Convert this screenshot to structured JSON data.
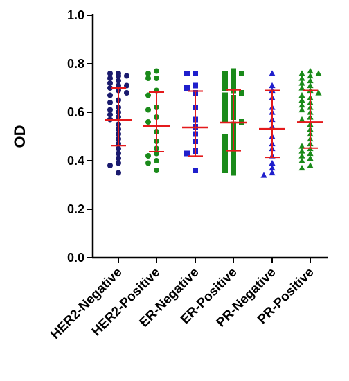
{
  "chart_data": {
    "type": "scatter",
    "subtype": "dot-plot with mean and SD error bars",
    "title": "",
    "xlabel": "",
    "ylabel": "OD",
    "ylim": [
      0.0,
      1.0
    ],
    "yticks": [
      "0.0",
      "0.2",
      "0.4",
      "0.6",
      "0.8",
      "1.0"
    ],
    "grid": false,
    "categories": [
      "HER2-Negative",
      "HER2-Positive",
      "ER-Negative",
      "ER-Positive",
      "PR-Negative",
      "PR-Positive"
    ],
    "series": [
      {
        "category": "HER2-Negative",
        "marker": "circle",
        "color": "#1a1a6e",
        "mean": 0.568,
        "sd_low": 0.462,
        "sd_high": 0.7,
        "values": [
          0.76,
          0.76,
          0.75,
          0.75,
          0.74,
          0.73,
          0.72,
          0.71,
          0.71,
          0.7,
          0.69,
          0.68,
          0.67,
          0.65,
          0.64,
          0.62,
          0.61,
          0.6,
          0.59,
          0.58,
          0.57,
          0.55,
          0.53,
          0.51,
          0.49,
          0.47,
          0.45,
          0.43,
          0.41,
          0.39,
          0.38,
          0.35
        ]
      },
      {
        "category": "HER2-Positive",
        "marker": "circle",
        "color": "#1a8a1a",
        "mean": 0.542,
        "sd_low": 0.437,
        "sd_high": 0.683,
        "values": [
          0.77,
          0.76,
          0.74,
          0.74,
          0.69,
          0.67,
          0.62,
          0.61,
          0.58,
          0.56,
          0.52,
          0.48,
          0.45,
          0.43,
          0.42,
          0.4,
          0.39,
          0.36
        ]
      },
      {
        "category": "ER-Negative",
        "marker": "square",
        "color": "#1f1fcc",
        "mean": 0.537,
        "sd_low": 0.419,
        "sd_high": 0.687,
        "values": [
          0.76,
          0.76,
          0.71,
          0.7,
          0.68,
          0.62,
          0.57,
          0.54,
          0.51,
          0.48,
          0.44,
          0.43,
          0.36
        ]
      },
      {
        "category": "ER-Positive",
        "marker": "square",
        "color": "#1a8a1a",
        "mean": 0.557,
        "sd_low": 0.441,
        "sd_high": 0.692,
        "values": [
          0.77,
          0.76,
          0.76,
          0.75,
          0.74,
          0.73,
          0.72,
          0.71,
          0.7,
          0.69,
          0.68,
          0.67,
          0.66,
          0.65,
          0.64,
          0.63,
          0.62,
          0.61,
          0.6,
          0.59,
          0.58,
          0.57,
          0.56,
          0.55,
          0.53,
          0.51,
          0.5,
          0.49,
          0.48,
          0.47,
          0.46,
          0.45,
          0.44,
          0.43,
          0.42,
          0.41,
          0.4,
          0.39,
          0.38,
          0.37,
          0.36,
          0.35
        ]
      },
      {
        "category": "PR-Negative",
        "marker": "triangle",
        "color": "#1f1fcc",
        "mean": 0.531,
        "sd_low": 0.414,
        "sd_high": 0.69,
        "values": [
          0.76,
          0.71,
          0.69,
          0.66,
          0.62,
          0.6,
          0.57,
          0.54,
          0.5,
          0.47,
          0.45,
          0.42,
          0.39,
          0.37,
          0.35,
          0.34
        ]
      },
      {
        "category": "PR-Positive",
        "marker": "triangle",
        "color": "#1a8a1a",
        "mean": 0.559,
        "sd_low": 0.452,
        "sd_high": 0.69,
        "values": [
          0.77,
          0.76,
          0.76,
          0.75,
          0.74,
          0.73,
          0.72,
          0.71,
          0.7,
          0.69,
          0.68,
          0.67,
          0.66,
          0.65,
          0.64,
          0.63,
          0.62,
          0.61,
          0.6,
          0.58,
          0.57,
          0.55,
          0.53,
          0.51,
          0.49,
          0.47,
          0.46,
          0.45,
          0.44,
          0.43,
          0.42,
          0.41,
          0.4,
          0.38,
          0.37
        ]
      }
    ]
  }
}
